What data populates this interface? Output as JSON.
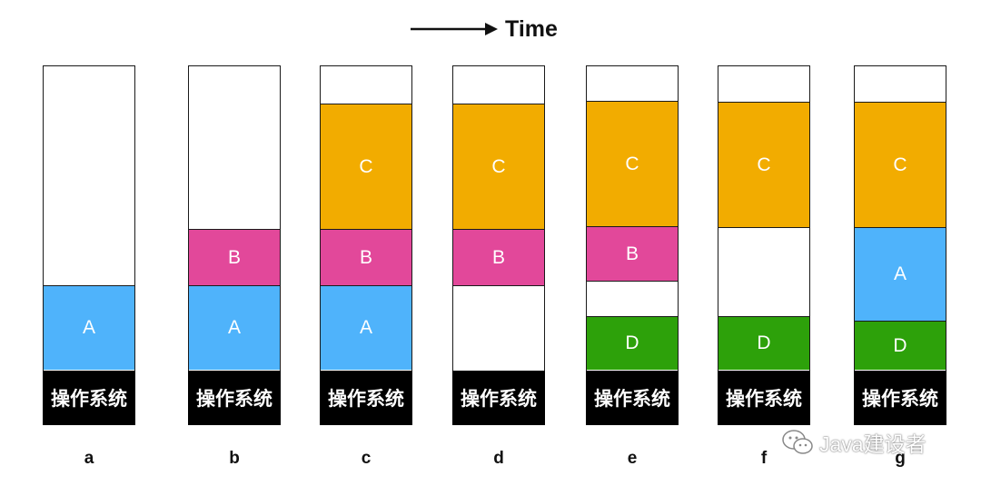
{
  "header": {
    "time_label": "Time",
    "arrow_icon": "right-arrow-icon"
  },
  "colors": {
    "A": "#4fb3fb",
    "B": "#e2489a",
    "C": "#f2ac00",
    "D": "#2da10a",
    "os": "#000000",
    "free": "#ffffff"
  },
  "os_label": "操作系统",
  "stages": [
    {
      "label": "a",
      "blocks": [
        {
          "id": "A",
          "label": "A",
          "size": 93
        }
      ]
    },
    {
      "label": "b",
      "blocks": [
        {
          "id": "A",
          "label": "A",
          "size": 93
        },
        {
          "id": "B",
          "label": "B",
          "size": 62
        }
      ]
    },
    {
      "label": "c",
      "blocks": [
        {
          "id": "A",
          "label": "A",
          "size": 93
        },
        {
          "id": "B",
          "label": "B",
          "size": 62
        },
        {
          "id": "C",
          "label": "C",
          "size": 138
        }
      ]
    },
    {
      "label": "d",
      "blocks": [
        {
          "id": "free",
          "label": "",
          "size": 93
        },
        {
          "id": "B",
          "label": "B",
          "size": 62
        },
        {
          "id": "C",
          "label": "C",
          "size": 138
        }
      ]
    },
    {
      "label": "e",
      "blocks": [
        {
          "id": "D",
          "label": "D",
          "size": 59
        },
        {
          "id": "free",
          "label": "",
          "size": 39
        },
        {
          "id": "B",
          "label": "B",
          "size": 60
        },
        {
          "id": "C",
          "label": "C",
          "size": 138
        }
      ]
    },
    {
      "label": "f",
      "blocks": [
        {
          "id": "D",
          "label": "D",
          "size": 59
        },
        {
          "id": "free",
          "label": "",
          "size": 98
        },
        {
          "id": "C",
          "label": "C",
          "size": 138
        }
      ]
    },
    {
      "label": "g",
      "blocks": [
        {
          "id": "D",
          "label": "D",
          "size": 54
        },
        {
          "id": "A",
          "label": "A",
          "size": 103
        },
        {
          "id": "C",
          "label": "C",
          "size": 138
        }
      ]
    }
  ],
  "watermark": {
    "text": "Java建设者",
    "icon": "wechat-icon"
  }
}
